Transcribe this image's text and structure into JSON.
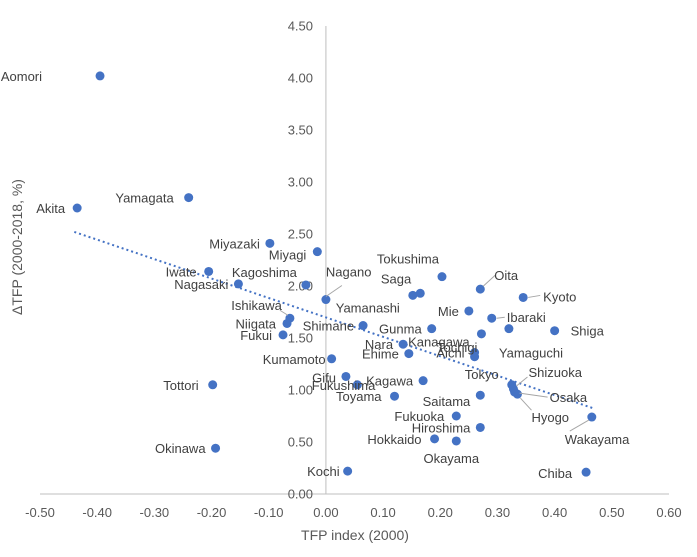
{
  "chart_data": {
    "type": "scatter",
    "xlabel": "TFP index (2000)",
    "ylabel": "ΔTFP (2000-2018, %)",
    "xlim": [
      -0.5,
      0.6
    ],
    "ylim": [
      0.0,
      4.5
    ],
    "x_ticks": [
      "-0.50",
      "-0.40",
      "-0.30",
      "-0.20",
      "-0.10",
      "0.00",
      "0.10",
      "0.20",
      "0.30",
      "0.40",
      "0.50",
      "0.60"
    ],
    "y_ticks": [
      "0.00",
      "0.50",
      "1.00",
      "1.50",
      "2.00",
      "2.50",
      "3.00",
      "3.50",
      "4.00",
      "4.50"
    ],
    "grid": false,
    "trendline": {
      "style": "dotted linear",
      "from": [
        -0.44,
        2.52
      ],
      "to": [
        0.47,
        0.82
      ]
    },
    "colors": {
      "point": "#4472c4",
      "trendline": "#4472c4",
      "axis": "#bfbfbf",
      "text": "#595959"
    },
    "points": [
      {
        "name": "Aomori",
        "x": -0.395,
        "y": 4.02
      },
      {
        "name": "Yamagata",
        "x": -0.24,
        "y": 2.85
      },
      {
        "name": "Akita",
        "x": -0.435,
        "y": 2.75
      },
      {
        "name": "Miyazaki",
        "x": -0.098,
        "y": 2.41
      },
      {
        "name": "Miyagi",
        "x": -0.015,
        "y": 2.33
      },
      {
        "name": "Iwate",
        "x": -0.205,
        "y": 2.14
      },
      {
        "name": "Kagoshima",
        "x": -0.035,
        "y": 2.01
      },
      {
        "name": "Nagasaki",
        "x": -0.153,
        "y": 2.02
      },
      {
        "name": "Nagano",
        "x": 0.0,
        "y": 1.87
      },
      {
        "name": "Tokushima",
        "x": 0.203,
        "y": 2.09
      },
      {
        "name": "Saga",
        "x": 0.165,
        "y": 1.93
      },
      {
        "name": "Yamanashi",
        "x": 0.152,
        "y": 1.91
      },
      {
        "name": "Oita",
        "x": 0.27,
        "y": 1.97
      },
      {
        "name": "Kyoto",
        "x": 0.345,
        "y": 1.89
      },
      {
        "name": "Mie",
        "x": 0.25,
        "y": 1.76
      },
      {
        "name": "Ibaraki",
        "x": 0.29,
        "y": 1.69
      },
      {
        "name": "Shiga",
        "x": 0.4,
        "y": 1.57
      },
      {
        "name": "Ishikawa",
        "x": -0.063,
        "y": 1.69
      },
      {
        "name": "Niigata",
        "x": -0.068,
        "y": 1.64
      },
      {
        "name": "Shimane",
        "x": 0.065,
        "y": 1.62
      },
      {
        "name": "Gunma",
        "x": 0.185,
        "y": 1.59
      },
      {
        "name": "Fukui",
        "x": -0.075,
        "y": 1.53
      },
      {
        "name": "Tochigi",
        "x": 0.272,
        "y": 1.54
      },
      {
        "name": "Yamaguchi",
        "x": 0.32,
        "y": 1.59
      },
      {
        "name": "Nara",
        "x": 0.135,
        "y": 1.44
      },
      {
        "name": "Aichi",
        "x": 0.26,
        "y": 1.36
      },
      {
        "name": "Ehime",
        "x": 0.145,
        "y": 1.35
      },
      {
        "name": "Kumamoto",
        "x": 0.01,
        "y": 1.3
      },
      {
        "name": "Kanagawa",
        "x": 0.26,
        "y": 1.32
      },
      {
        "name": "Gifu",
        "x": 0.035,
        "y": 1.13
      },
      {
        "name": "Kagawa",
        "x": 0.17,
        "y": 1.09
      },
      {
        "name": "Fukushima",
        "x": 0.055,
        "y": 1.05
      },
      {
        "name": "Tottori",
        "x": -0.198,
        "y": 1.05
      },
      {
        "name": "Tokyo",
        "x": 0.325,
        "y": 1.05
      },
      {
        "name": "Shizuoka",
        "x": 0.328,
        "y": 1.01
      },
      {
        "name": "Osaka",
        "x": 0.33,
        "y": 0.98
      },
      {
        "name": "Hyogo",
        "x": 0.335,
        "y": 0.96
      },
      {
        "name": "Saitama",
        "x": 0.27,
        "y": 0.95
      },
      {
        "name": "Toyama",
        "x": 0.12,
        "y": 0.94
      },
      {
        "name": "Fukuoka",
        "x": 0.228,
        "y": 0.75
      },
      {
        "name": "Wakayama",
        "x": 0.465,
        "y": 0.74
      },
      {
        "name": "Hiroshima",
        "x": 0.27,
        "y": 0.64
      },
      {
        "name": "Hokkaido",
        "x": 0.19,
        "y": 0.53
      },
      {
        "name": "Okayama",
        "x": 0.228,
        "y": 0.51
      },
      {
        "name": "Okinawa",
        "x": -0.193,
        "y": 0.44
      },
      {
        "name": "Kochi",
        "x": 0.038,
        "y": 0.22
      },
      {
        "name": "Chiba",
        "x": 0.455,
        "y": 0.21
      }
    ]
  }
}
